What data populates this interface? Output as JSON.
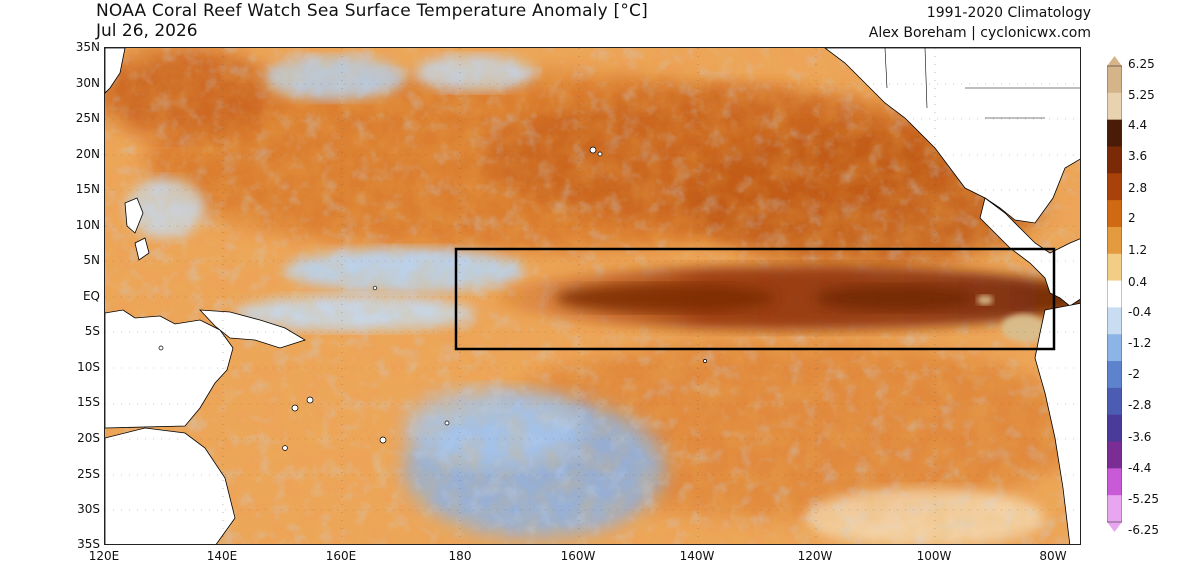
{
  "title": {
    "main": "NOAA Coral Reef Watch Sea Surface Temperature Anomaly [°C]",
    "date": "Jul 26, 2026",
    "climatology": "1991-2020 Climatology",
    "credit": "Alex Boreham | cyclonicwx.com"
  },
  "axes": {
    "lat_labels": [
      "35N",
      "30N",
      "25N",
      "20N",
      "15N",
      "10N",
      "5N",
      "EQ",
      "5S",
      "10S",
      "15S",
      "20S",
      "25S",
      "30S",
      "35S"
    ],
    "lon_labels": [
      "120E",
      "140E",
      "160E",
      "180",
      "160W",
      "140W",
      "120W",
      "100W",
      "80W"
    ]
  },
  "colorbar": {
    "labels": [
      "6.25",
      "5.25",
      "4.4",
      "3.6",
      "2.8",
      "2",
      "1.2",
      "0.4",
      "-0.4",
      "-1.2",
      "-2",
      "-2.8",
      "-3.6",
      "-4.4",
      "-5.25",
      "-6.25"
    ],
    "colors": [
      "#d6b48a",
      "#e8d2b0",
      "#4a1c08",
      "#7a2a06",
      "#a8420a",
      "#cf6912",
      "#e49a3e",
      "#f2cd86",
      "#ffffff",
      "#c8dcf2",
      "#8db4e6",
      "#5d83cc",
      "#4d5cb3",
      "#4a3a9a",
      "#7a2d94",
      "#c85ad8",
      "#e9a6f0"
    ]
  },
  "region_box": {
    "label": "",
    "lat_range": [
      "5N",
      "5S"
    ],
    "lon_range": [
      "180",
      "80W"
    ]
  },
  "colors": {
    "warm_background": "#e89a45",
    "strong_warm": "#b44a10",
    "cool": "#a9c8ec",
    "land": "#ffffff",
    "box_outline": "#000000"
  }
}
